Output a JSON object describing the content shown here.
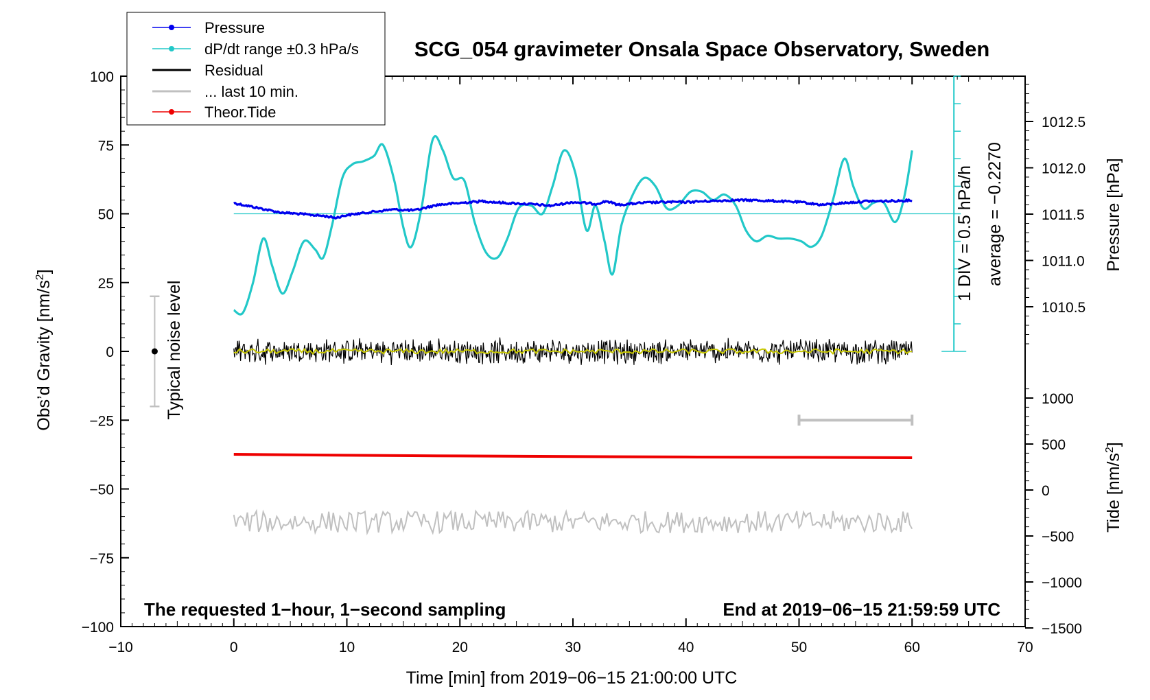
{
  "chart_data": {
    "type": "line",
    "title": "SCG_054 gravimeter Onsala Space Observatory, Sweden",
    "xlabel": "Time [min] from 2019−06−15 21:00:00 UTC",
    "xlim": [
      -10,
      70
    ],
    "x_ticks": [
      -10,
      0,
      10,
      20,
      30,
      40,
      50,
      60,
      70
    ],
    "x_tick_labels": [
      "−10",
      "0",
      "10",
      "20",
      "30",
      "40",
      "50",
      "60",
      "70"
    ],
    "left_axis": {
      "label_main": "Obs’d Gravity [nm/s",
      "label_sup": "2",
      "label_end": "]",
      "ylim": [
        -100,
        100
      ],
      "ticks": [
        -100,
        -75,
        -50,
        -25,
        0,
        25,
        50,
        75,
        100
      ],
      "tick_labels": [
        "−100",
        "−75",
        "−50",
        "−25",
        "0",
        "25",
        "50",
        "75",
        "100"
      ]
    },
    "pressure_axis": {
      "label": "Pressure [hPa]",
      "ticks": [
        1010.5,
        1011.0,
        1011.5,
        1012.0,
        1012.5
      ],
      "tick_labels": [
        "1010.5",
        "1011.0",
        "1011.5",
        "1012.0",
        "1012.5"
      ]
    },
    "tide_axis": {
      "label_main": "Tide [nm/s",
      "label_sup": "2",
      "label_end": "]",
      "ticks": [
        -1500,
        -1000,
        -500,
        0,
        500,
        1000
      ],
      "tick_labels": [
        "−1500",
        "−1000",
        "−500",
        "0",
        "500",
        "1000"
      ]
    },
    "dpdt_scale": {
      "label_div": "1 DIV = 0.5 hPa/h",
      "label_avg": "average = −0.2270"
    },
    "noise_label": "Typical noise level",
    "footnote_left": "The requested 1−hour, 1−second sampling",
    "footnote_right": "End at 2019−06−15 21:59:59 UTC",
    "legend": [
      {
        "label": "Pressure",
        "color": "#0000ee"
      },
      {
        "label": "dP/dt range ±0.3 hPa/s",
        "color": "#22c8c8"
      },
      {
        "label": "Residual",
        "color": "#000000"
      },
      {
        "label": "... last 10 min.",
        "color": "#c0c0c0"
      },
      {
        "label": "Theor.Tide",
        "color": "#ee0000"
      }
    ],
    "series": [
      {
        "name": "Pressure",
        "color": "#0000ee",
        "axis": "pressure",
        "x": [
          0,
          2,
          4,
          6,
          8,
          9,
          10,
          12,
          14,
          16,
          18,
          20,
          22,
          24,
          26,
          28,
          30,
          32,
          33,
          34,
          36,
          38,
          40,
          42,
          44,
          46,
          48,
          50,
          52,
          54,
          56,
          58,
          60
        ],
        "values": [
          1011.62,
          1011.57,
          1011.52,
          1011.5,
          1011.48,
          1011.46,
          1011.49,
          1011.52,
          1011.55,
          1011.54,
          1011.6,
          1011.62,
          1011.64,
          1011.62,
          1011.61,
          1011.59,
          1011.63,
          1011.61,
          1011.64,
          1011.6,
          1011.62,
          1011.63,
          1011.63,
          1011.64,
          1011.65,
          1011.65,
          1011.64,
          1011.63,
          1011.6,
          1011.62,
          1011.64,
          1011.64,
          1011.65
        ]
      },
      {
        "name": "dP/dt range ±0.3 hPa/s",
        "color": "#22c8c8",
        "axis": "left",
        "x": [
          0,
          0.8,
          1.7,
          2.6,
          3.4,
          4.3,
          5.2,
          6.2,
          7.2,
          7.9,
          8.7,
          9.6,
          10.5,
          11.4,
          12.4,
          13.2,
          14.2,
          15.0,
          15.7,
          16.6,
          17.6,
          18.5,
          19.4,
          20.4,
          21.3,
          22.3,
          23.3,
          24.2,
          25.2,
          26.3,
          27.3,
          28.2,
          29.2,
          30.2,
          31.2,
          32.0,
          32.8,
          33.5,
          34.3,
          35.3,
          36.3,
          37.3,
          38.3,
          39.3,
          40.4,
          41.4,
          42.4,
          43.4,
          44.4,
          45.3,
          46.2,
          47.2,
          48.2,
          49.2,
          50.2,
          51.1,
          52.0,
          53.0,
          54.0,
          54.8,
          55.7,
          56.6,
          57.5,
          58.5,
          59.3,
          60.0
        ],
        "values": [
          15,
          14,
          25,
          41,
          31,
          21,
          29,
          40,
          37,
          34,
          46,
          63,
          68,
          69,
          71,
          75,
          62,
          45,
          38,
          52,
          77,
          73,
          63,
          62,
          47,
          36,
          34,
          41,
          52,
          53,
          50,
          60,
          73,
          65,
          44,
          53,
          40,
          28,
          46,
          57,
          63,
          60,
          52,
          53,
          58,
          58,
          55,
          57,
          53,
          44,
          40,
          42,
          41,
          41,
          40,
          38,
          42,
          55,
          70,
          60,
          52,
          54,
          54,
          47,
          56,
          73
        ]
      },
      {
        "name": "Residual",
        "color": "#000000",
        "axis": "left",
        "x": [
          0,
          60
        ],
        "values": [
          0,
          0
        ],
        "noise_amplitude": 4
      },
      {
        "name": "Residual (smoothed)",
        "color": "#c8c800",
        "axis": "left",
        "x": [
          0,
          60
        ],
        "values": [
          0,
          0
        ]
      },
      {
        "name": "... last 10 min.",
        "color": "#c0c0c0",
        "axis": "left",
        "x": [
          0,
          60
        ],
        "values": [
          -62,
          -62
        ],
        "noise_amplitude": 4
      },
      {
        "name": "Theor.Tide",
        "color": "#ee0000",
        "axis": "tide",
        "x": [
          0,
          10,
          20,
          30,
          40,
          50,
          60
        ],
        "values": [
          388,
          378,
          370,
          364,
          359,
          355,
          351
        ]
      }
    ],
    "last10_bar": {
      "x": [
        50,
        60
      ],
      "y": -25
    },
    "noise_bar": {
      "x": -7,
      "center": 0,
      "half_range": 20
    }
  }
}
